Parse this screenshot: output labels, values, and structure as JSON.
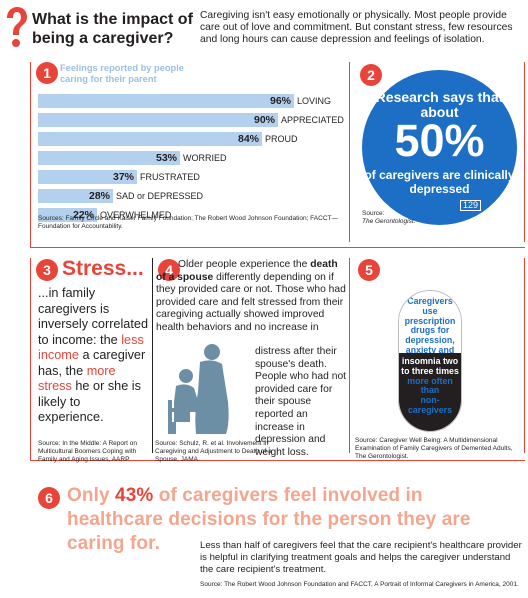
{
  "header": {
    "title": "What is the impact of being a caregiver?",
    "intro": "Caregiving isn't easy emotionally or physically. Most people provide care out of love and commitment. But constant stress, few resources and long hours can cause depression and feelings of isolation."
  },
  "panel1": {
    "number": "1",
    "heading": "Feelings reported by people caring for their parent",
    "source": "Sources: Family Circle and Kaiser Family Foundation; The Robert Wood Johnson Foundation; FACCT—Foundation for Accountability."
  },
  "chart_data": {
    "type": "bar",
    "orientation": "horizontal",
    "title": "Feelings reported by people caring for their parent",
    "categories": [
      "LOVING",
      "APPRECIATED",
      "PROUD",
      "WORRIED",
      "FRUSTRATED",
      "SAD or DEPRESSED",
      "OVERWHELMED"
    ],
    "values": [
      96,
      90,
      84,
      53,
      37,
      28,
      22
    ],
    "value_labels": [
      "96%",
      "90%",
      "84%",
      "53%",
      "37%",
      "28%",
      "22%"
    ],
    "xlim": [
      0,
      100
    ],
    "unit": "%",
    "grid": false,
    "bar_color": "#b3d1ee"
  },
  "panel2": {
    "number": "2",
    "top": "Research says that about",
    "big": "50%",
    "bottom": "of caregivers are clinically depressed",
    "page_num": "129",
    "source_label": "Source:",
    "source": "The Gerontologist."
  },
  "panel3": {
    "number": "3",
    "title": "Stress...",
    "t1": "...in family caregivers is inversely correlated to income: the",
    "t2": "less income",
    "t3": "a caregiver has, the",
    "t4": "more stress",
    "t5": "he or she is likely to experience.",
    "source": "Source: In the Middle: A Report on Multicultural Boomers Coping with Family and Aging Issues, AARP."
  },
  "panel4": {
    "number": "4",
    "t1": "Older people experience the",
    "t2": "death of a spouse",
    "t3": "differently depending on if they provided care or not. Those who had provided care and felt stressed from their caregiving actually showed improved health behaviors and no increase in",
    "t4": "distress after their spouse's death. People who had not provided care for their spouse reported an increase in depression and weight loss.",
    "source": "Source: Schulz, R. et al. Involvement in Caregiving and Adjustment to Death of a Spouse, JAMA."
  },
  "panel5": {
    "number": "5",
    "top": "Caregivers use prescription drugs for depression, anxiety and",
    "bot1": "insomnia two to three times",
    "bot2": "more often than",
    "bot3": "non-caregivers",
    "source": "Source: Caregiver Well Being: A Multidimensional Examination of Family Caregivers of Demented Adults, The Gerontologist."
  },
  "panel6": {
    "number": "6",
    "h1": "Only",
    "h2": "43%",
    "h3": "of caregivers feel involved in healthcare decisions for the person they are caring for.",
    "body": "Less than half of caregivers feel that the care recipient's healthcare provider is helpful in clarifying treatment goals and helps the caregiver understand the care recipient's treatment.",
    "source": "Source: The Robert Wood Johnson Foundation and FACCT, A Portrait of Informal Caregivers in America, 2001."
  },
  "colors": {
    "accent_red": "#e8443a",
    "bar_blue": "#b3d1ee",
    "circle_blue": "#1c6fc4",
    "salmon": "#f4a58e"
  }
}
